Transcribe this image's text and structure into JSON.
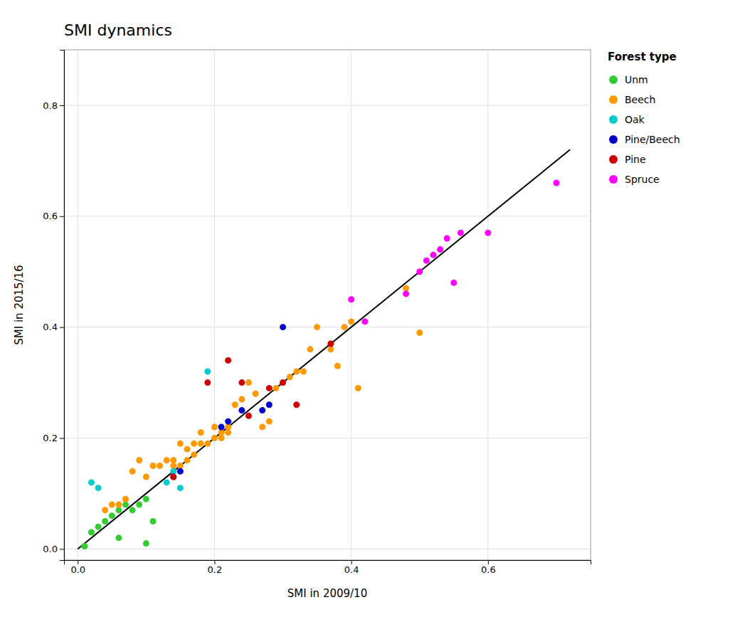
{
  "chart_data": {
    "type": "scatter",
    "title": "SMI dynamics",
    "xlabel": "SMI in 2009/10",
    "ylabel": "SMI in 2015/16",
    "xlim": [
      -0.02,
      0.75
    ],
    "ylim": [
      -0.02,
      0.9
    ],
    "xticks": [
      {
        "value": 0.0,
        "label": "0.0"
      },
      {
        "value": 0.2,
        "label": "0.2"
      },
      {
        "value": 0.4,
        "label": "0.4"
      },
      {
        "value": 0.6,
        "label": "0.6"
      }
    ],
    "yticks": [
      {
        "value": 0.0,
        "label": "0.0"
      },
      {
        "value": 0.2,
        "label": "0.2"
      },
      {
        "value": 0.4,
        "label": "0.4"
      },
      {
        "value": 0.6,
        "label": "0.6"
      },
      {
        "value": 0.8,
        "label": "0.8"
      }
    ],
    "grid": true,
    "legend_title": "Forest type",
    "series": [
      {
        "name": "Unm",
        "color": "#33cc33",
        "x": [
          0.01,
          0.02,
          0.03,
          0.04,
          0.05,
          0.06,
          0.06,
          0.07,
          0.08,
          0.09,
          0.1,
          0.1,
          0.11
        ],
        "values": [
          0.005,
          0.03,
          0.04,
          0.05,
          0.06,
          0.07,
          0.02,
          0.08,
          0.07,
          0.08,
          0.09,
          0.01,
          0.05
        ]
      },
      {
        "name": "Beech",
        "color": "#ff9900",
        "x": [
          0.04,
          0.05,
          0.06,
          0.07,
          0.08,
          0.09,
          0.1,
          0.11,
          0.12,
          0.13,
          0.14,
          0.14,
          0.15,
          0.15,
          0.16,
          0.16,
          0.17,
          0.17,
          0.18,
          0.18,
          0.19,
          0.2,
          0.2,
          0.21,
          0.21,
          0.22,
          0.22,
          0.23,
          0.24,
          0.25,
          0.26,
          0.27,
          0.28,
          0.29,
          0.3,
          0.31,
          0.32,
          0.33,
          0.34,
          0.35,
          0.37,
          0.38,
          0.39,
          0.4,
          0.41,
          0.48,
          0.5
        ],
        "values": [
          0.07,
          0.08,
          0.08,
          0.09,
          0.14,
          0.16,
          0.13,
          0.15,
          0.15,
          0.16,
          0.15,
          0.16,
          0.15,
          0.19,
          0.16,
          0.18,
          0.17,
          0.19,
          0.19,
          0.21,
          0.19,
          0.2,
          0.22,
          0.21,
          0.2,
          0.22,
          0.21,
          0.26,
          0.27,
          0.3,
          0.28,
          0.22,
          0.23,
          0.29,
          0.3,
          0.31,
          0.32,
          0.32,
          0.36,
          0.4,
          0.36,
          0.33,
          0.4,
          0.41,
          0.29,
          0.47,
          0.39
        ]
      },
      {
        "name": "Oak",
        "color": "#00cccc",
        "x": [
          0.02,
          0.03,
          0.13,
          0.14,
          0.15,
          0.19
        ],
        "values": [
          0.12,
          0.11,
          0.12,
          0.14,
          0.11,
          0.32
        ]
      },
      {
        "name": "Pine/Beech",
        "color": "#0000cc",
        "x": [
          0.14,
          0.15,
          0.21,
          0.22,
          0.24,
          0.27,
          0.28,
          0.3
        ],
        "values": [
          0.13,
          0.14,
          0.22,
          0.23,
          0.25,
          0.25,
          0.26,
          0.4
        ]
      },
      {
        "name": "Pine",
        "color": "#cc0000",
        "x": [
          0.14,
          0.19,
          0.22,
          0.24,
          0.25,
          0.28,
          0.3,
          0.32,
          0.37
        ],
        "values": [
          0.13,
          0.3,
          0.34,
          0.3,
          0.24,
          0.29,
          0.3,
          0.26,
          0.37
        ]
      },
      {
        "name": "Spruce",
        "color": "#ff00ff",
        "x": [
          0.4,
          0.42,
          0.48,
          0.5,
          0.51,
          0.52,
          0.53,
          0.54,
          0.55,
          0.56,
          0.6,
          0.7
        ],
        "values": [
          0.45,
          0.41,
          0.46,
          0.5,
          0.52,
          0.53,
          0.54,
          0.56,
          0.48,
          0.57,
          0.57,
          0.66
        ]
      }
    ],
    "diagonal": {
      "x": [
        0.0,
        0.72
      ],
      "values": [
        0.0,
        0.72
      ],
      "color": "#000000"
    }
  }
}
